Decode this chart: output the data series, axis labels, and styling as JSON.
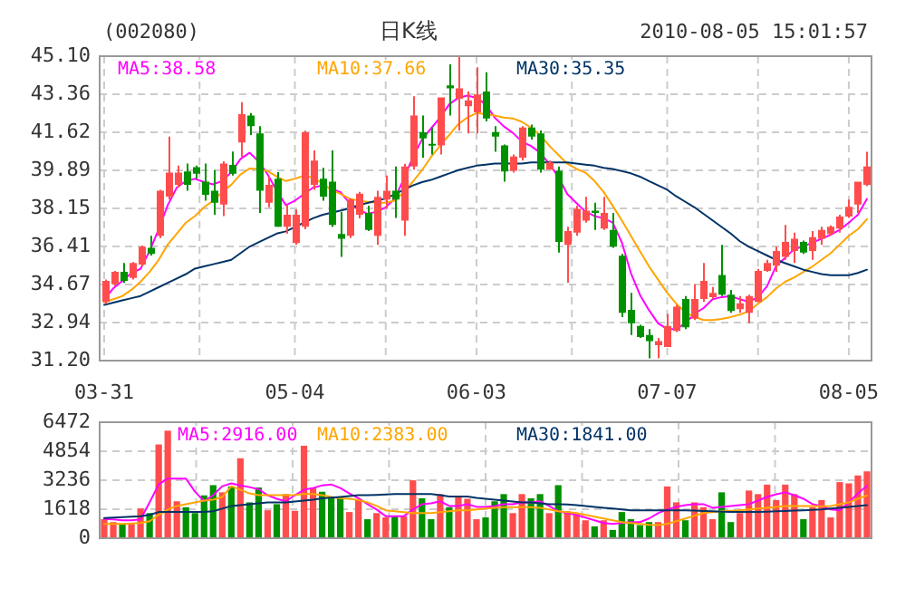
{
  "chart_data": [
    {
      "type": "candlestick",
      "title": "日K线",
      "annotations": [
        "(002080)",
        "2010-08-05 15:01:57"
      ],
      "categories": [
        "03-31",
        null,
        null,
        null,
        null,
        null,
        null,
        null,
        null,
        null,
        null,
        null,
        null,
        null,
        null,
        null,
        null,
        null,
        null,
        null,
        null,
        "05-04",
        null,
        null,
        null,
        null,
        null,
        null,
        null,
        null,
        null,
        null,
        null,
        null,
        null,
        null,
        null,
        null,
        null,
        null,
        null,
        "06-03",
        null,
        null,
        null,
        null,
        null,
        null,
        null,
        null,
        null,
        null,
        null,
        null,
        null,
        null,
        null,
        null,
        null,
        null,
        null,
        null,
        "07-07",
        null,
        null,
        null,
        null,
        null,
        null,
        null,
        null,
        null,
        null,
        null,
        null,
        null,
        null,
        null,
        null,
        null,
        null,
        null,
        "08-05",
        null,
        null
      ],
      "ohlc": [
        [
          33.88,
          34.9,
          33.8,
          34.84
        ],
        [
          34.7,
          35.3,
          34.6,
          35.25
        ],
        [
          35.25,
          35.66,
          34.75,
          34.84
        ],
        [
          34.98,
          35.7,
          34.9,
          35.66
        ],
        [
          35.58,
          36.45,
          35.5,
          36.4
        ],
        [
          36.35,
          36.9,
          36.0,
          36.07
        ],
        [
          36.9,
          39.0,
          36.8,
          38.96
        ],
        [
          38.69,
          41.43,
          38.55,
          39.78
        ],
        [
          39.23,
          40.1,
          39.1,
          39.78
        ],
        [
          39.84,
          40.2,
          38.96,
          39.23
        ],
        [
          40.03,
          40.1,
          39.5,
          39.73
        ],
        [
          39.37,
          40.2,
          38.5,
          38.77
        ],
        [
          38.96,
          39.9,
          37.86,
          38.41
        ],
        [
          38.33,
          40.3,
          37.8,
          40.2
        ],
        [
          40.14,
          40.75,
          39.65,
          39.73
        ],
        [
          41.16,
          43.0,
          40.5,
          42.45
        ],
        [
          42.39,
          42.5,
          41.5,
          41.9
        ],
        [
          41.57,
          41.9,
          37.94,
          38.96
        ],
        [
          38.41,
          39.6,
          38.2,
          39.23
        ],
        [
          39.51,
          39.8,
          37.3,
          37.31
        ],
        [
          37.31,
          38.3,
          37.0,
          37.86
        ],
        [
          36.57,
          38.1,
          36.5,
          37.86
        ],
        [
          37.31,
          41.7,
          37.2,
          41.62
        ],
        [
          39.23,
          40.8,
          39.0,
          40.33
        ],
        [
          39.51,
          40.0,
          38.5,
          38.69
        ],
        [
          39.37,
          40.8,
          37.3,
          37.39
        ],
        [
          36.98,
          37.98,
          35.94,
          36.76
        ],
        [
          36.9,
          38.6,
          36.8,
          38.55
        ],
        [
          37.86,
          38.9,
          37.7,
          38.82
        ],
        [
          37.94,
          38.27,
          37.12,
          37.17
        ],
        [
          36.9,
          38.96,
          36.49,
          38.68
        ],
        [
          38.55,
          39.65,
          38.13,
          38.96
        ],
        [
          38.96,
          40.06,
          37.72,
          38.55
        ],
        [
          37.59,
          40.19,
          36.9,
          40.06
        ],
        [
          40.06,
          43.27,
          39.92,
          42.39
        ],
        [
          41.62,
          42.39,
          40.47,
          41.35
        ],
        [
          41.1,
          41.84,
          40.61,
          41.02
        ],
        [
          41.02,
          43.22,
          40.61,
          43.22
        ],
        [
          43.77,
          44.73,
          42.39,
          43.63
        ],
        [
          43.16,
          45.1,
          41.71,
          43.63
        ],
        [
          42.81,
          43.49,
          41.57,
          43.08
        ],
        [
          42.53,
          44.59,
          41.57,
          43.35
        ],
        [
          43.49,
          44.37,
          42.12,
          42.26
        ],
        [
          41.62,
          41.9,
          40.74,
          41.43
        ],
        [
          41.02,
          41.07,
          39.37,
          39.84
        ],
        [
          39.87,
          40.61,
          39.78,
          40.52
        ],
        [
          40.47,
          41.9,
          40.33,
          41.84
        ],
        [
          41.84,
          41.98,
          41.29,
          41.43
        ],
        [
          41.57,
          41.71,
          39.78,
          39.92
        ],
        [
          39.92,
          40.33,
          39.92,
          40.25
        ],
        [
          39.87,
          40.06,
          36.13,
          36.62
        ],
        [
          36.49,
          37.31,
          34.76,
          37.12
        ],
        [
          37.04,
          38.27,
          36.9,
          38.13
        ],
        [
          37.59,
          38.68,
          37.5,
          38.05
        ],
        [
          38.05,
          38.41,
          37.17,
          37.94
        ],
        [
          37.23,
          38.68,
          37.17,
          37.94
        ],
        [
          37.17,
          37.94,
          36.35,
          36.4
        ],
        [
          35.99,
          36.07,
          33.19,
          33.38
        ],
        [
          33.52,
          34.29,
          32.37,
          32.91
        ],
        [
          32.78,
          32.83,
          32.23,
          32.28
        ],
        [
          32.37,
          32.64,
          31.3,
          32.09
        ],
        [
          31.9,
          32.23,
          31.3,
          32.09
        ],
        [
          31.82,
          33.33,
          31.82,
          32.78
        ],
        [
          32.56,
          33.74,
          32.5,
          33.66
        ],
        [
          34.01,
          34.15,
          32.64,
          32.72
        ],
        [
          33.11,
          34.7,
          33.05,
          34.01
        ],
        [
          34.01,
          35.66,
          33.88,
          34.84
        ],
        [
          34.1,
          34.56,
          34.01,
          34.29
        ],
        [
          35.11,
          36.49,
          34.15,
          34.21
        ],
        [
          34.21,
          34.43,
          33.38,
          33.46
        ],
        [
          33.55,
          34.15,
          33.38,
          33.82
        ],
        [
          33.38,
          34.21,
          32.91,
          34.15
        ],
        [
          33.88,
          35.39,
          33.88,
          35.3
        ],
        [
          35.3,
          35.8,
          35.25,
          35.66
        ],
        [
          35.53,
          36.4,
          35.25,
          36.21
        ],
        [
          35.94,
          37.4,
          35.8,
          36.62
        ],
        [
          36.21,
          37.04,
          35.66,
          36.76
        ],
        [
          36.62,
          36.68,
          36.07,
          36.13
        ],
        [
          36.21,
          37.12,
          35.8,
          36.84
        ],
        [
          36.76,
          37.31,
          36.49,
          37.17
        ],
        [
          36.98,
          37.37,
          36.9,
          37.31
        ],
        [
          37.23,
          37.86,
          37.04,
          37.78
        ],
        [
          37.78,
          38.55,
          37.72,
          38.22
        ],
        [
          38.33,
          39.37,
          37.94,
          39.37
        ],
        [
          39.23,
          40.74,
          39.16,
          40.06
        ]
      ],
      "colors": [
        "#ff4d4d",
        "#ff4d4d",
        "#009100",
        "#ff4d4d",
        "#ff4d4d",
        "#009100",
        "#ff4d4d",
        "#ff4d4d",
        "#ff4d4d",
        "#009100",
        "#009100",
        "#009100",
        "#009100",
        "#ff4d4d",
        "#009100",
        "#ff4d4d",
        "#009100",
        "#009100",
        "#ff4d4d",
        "#009100",
        "#ff4d4d",
        "#ff4d4d",
        "#ff4d4d",
        "#ff4d4d",
        "#009100",
        "#009100",
        "#009100",
        "#ff4d4d",
        "#ff4d4d",
        "#009100",
        "#ff4d4d",
        "#ff4d4d",
        "#009100",
        "#ff4d4d",
        "#ff4d4d",
        "#009100",
        "#009100",
        "#ff4d4d",
        "#009100",
        "#ff4d4d",
        "#ff4d4d",
        "#ff4d4d",
        "#009100",
        "#009100",
        "#009100",
        "#ff4d4d",
        "#ff4d4d",
        "#009100",
        "#009100",
        "#ff4d4d",
        "#009100",
        "#ff4d4d",
        "#ff4d4d",
        "#ff4d4d",
        "#009100",
        "#ff4d4d",
        "#009100",
        "#009100",
        "#009100",
        "#009100",
        "#009100",
        "#ff4d4d",
        "#ff4d4d",
        "#ff4d4d",
        "#009100",
        "#ff4d4d",
        "#ff4d4d",
        "#ff4d4d",
        "#009100",
        "#009100",
        "#ff4d4d",
        "#ff4d4d",
        "#ff4d4d",
        "#ff4d4d",
        "#ff4d4d",
        "#ff4d4d",
        "#ff4d4d",
        "#009100",
        "#ff4d4d",
        "#ff4d4d",
        "#ff4d4d",
        "#ff4d4d",
        "#ff4d4d",
        "#ff4d4d",
        "#ff4d4d"
      ],
      "series": [
        {
          "type": "line",
          "name": "MA5:38.58",
          "color": "#ff00ff",
          "values": [
            34.0,
            34.5,
            34.84,
            35.2,
            35.39,
            36.2,
            37.2,
            38.3,
            39.1,
            39.4,
            39.5,
            39.35,
            39.25,
            39.4,
            39.8,
            40.4,
            40.69,
            40.3,
            39.7,
            38.96,
            38.3,
            38.5,
            38.8,
            39.1,
            39.2,
            39.05,
            38.9,
            38.4,
            38.1,
            37.9,
            38.0,
            38.2,
            38.6,
            39.5,
            40.5,
            41.3,
            41.8,
            42.3,
            42.9,
            43.2,
            43.3,
            43.2,
            42.9,
            42.3,
            41.9,
            41.6,
            41.2,
            41.0,
            40.7,
            40.19,
            39.6,
            38.8,
            38.4,
            38.0,
            37.8,
            37.7,
            37.5,
            36.6,
            35.2,
            34.2,
            33.5,
            32.9,
            32.64,
            32.64,
            32.9,
            33.33,
            33.6,
            34.0,
            34.1,
            34.15,
            34.0,
            33.88,
            34.1,
            34.6,
            35.53,
            35.9,
            36.3,
            36.4,
            36.6,
            36.76,
            36.95,
            37.17,
            37.5,
            37.86,
            38.58
          ]
        },
        {
          "type": "line",
          "name": "MA10:37.66",
          "color": "#ffa500",
          "values": [
            33.88,
            34.0,
            34.15,
            34.43,
            34.8,
            35.25,
            35.8,
            36.5,
            37.0,
            37.5,
            37.8,
            38.2,
            38.5,
            38.9,
            39.23,
            39.7,
            39.97,
            39.95,
            39.85,
            39.6,
            39.4,
            39.5,
            39.65,
            39.55,
            39.3,
            39.0,
            38.82,
            38.6,
            38.5,
            38.45,
            38.41,
            38.41,
            38.5,
            38.9,
            39.37,
            39.9,
            40.5,
            41.02,
            41.5,
            42.0,
            42.3,
            42.5,
            42.45,
            42.39,
            42.3,
            42.26,
            42.1,
            41.84,
            41.5,
            41.02,
            40.6,
            40.19,
            39.95,
            39.78,
            39.4,
            38.9,
            38.27,
            37.6,
            36.9,
            36.2,
            35.5,
            34.9,
            34.3,
            33.8,
            33.4,
            33.2,
            33.05,
            33.05,
            33.1,
            33.19,
            33.3,
            33.46,
            33.8,
            34.1,
            34.5,
            34.8,
            35.0,
            35.25,
            35.5,
            35.8,
            36.1,
            36.5,
            36.9,
            37.2,
            37.66
          ]
        },
        {
          "type": "line",
          "name": "MA30:35.35",
          "color": "#003366",
          "values": [
            33.74,
            33.85,
            33.95,
            34.05,
            34.15,
            34.35,
            34.55,
            34.75,
            34.95,
            35.15,
            35.4,
            35.5,
            35.6,
            35.7,
            35.8,
            36.1,
            36.4,
            36.6,
            36.8,
            37.0,
            37.1,
            37.3,
            37.5,
            37.7,
            37.85,
            37.95,
            38.05,
            38.15,
            38.3,
            38.4,
            38.5,
            38.6,
            38.8,
            39.0,
            39.2,
            39.35,
            39.45,
            39.6,
            39.75,
            39.9,
            40.0,
            40.1,
            40.15,
            40.2,
            40.2,
            40.2,
            40.2,
            40.25,
            40.25,
            40.25,
            40.25,
            40.25,
            40.2,
            40.15,
            40.1,
            40.0,
            39.95,
            39.85,
            39.75,
            39.6,
            39.4,
            39.2,
            39.0,
            38.7,
            38.45,
            38.2,
            37.9,
            37.6,
            37.3,
            37.0,
            36.65,
            36.4,
            36.2,
            36.0,
            35.8,
            35.65,
            35.5,
            35.35,
            35.25,
            35.15,
            35.1,
            35.1,
            35.1,
            35.2,
            35.35
          ]
        }
      ],
      "ylim": [
        31.2,
        45.1
      ],
      "yticks": [
        {
          "value": 31.2,
          "label": "31.20"
        },
        {
          "value": 32.94,
          "label": "32.94"
        },
        {
          "value": 34.67,
          "label": "34.67"
        },
        {
          "value": 36.41,
          "label": "36.41"
        },
        {
          "value": 38.15,
          "label": "38.15"
        },
        {
          "value": 39.89,
          "label": "39.89"
        },
        {
          "value": 41.62,
          "label": "41.62"
        },
        {
          "value": 43.36,
          "label": "43.36"
        },
        {
          "value": 45.1,
          "label": "45.10"
        }
      ],
      "grid": true,
      "legend": "top"
    },
    {
      "type": "bar",
      "categories": [
        null,
        null,
        null,
        null,
        null,
        null,
        null,
        null,
        null,
        null,
        null,
        null,
        null,
        null,
        null,
        null,
        null,
        null,
        null,
        null,
        null,
        null,
        null,
        null,
        null,
        null,
        null,
        null,
        null,
        null,
        null,
        null,
        null,
        null,
        null,
        null,
        null,
        null,
        null,
        null,
        null,
        null,
        null,
        null,
        null,
        null,
        null,
        null,
        null,
        null,
        null,
        null,
        null,
        null,
        null,
        null,
        null,
        null,
        null,
        null,
        null,
        null,
        null,
        null,
        null,
        null,
        null,
        null,
        null,
        null,
        null,
        null,
        null,
        null,
        null,
        null,
        null,
        null,
        null,
        null,
        null,
        null,
        null,
        null,
        null
      ],
      "series": [
        {
          "type": "bar",
          "values": [
            1060,
            900,
            800,
            800,
            1660,
            1400,
            5230,
            6000,
            2060,
            1730,
            1400,
            2390,
            2960,
            2560,
            2890,
            4460,
            2000,
            2830,
            1560,
            1900,
            2460,
            1530,
            5160,
            2830,
            2590,
            2330,
            2330,
            1460,
            2130,
            1060,
            1400,
            1160,
            1200,
            1230,
            3230,
            2230,
            1060,
            2460,
            1730,
            2330,
            2200,
            1060,
            1160,
            2060,
            2460,
            1400,
            2460,
            2230,
            2460,
            1400,
            2960,
            1500,
            1400,
            1000,
            660,
            1000,
            460,
            1460,
            1060,
            730,
            900,
            900,
            2890,
            2000,
            1000,
            2000,
            1730,
            1060,
            2560,
            900,
            1400,
            2660,
            2460,
            2990,
            2130,
            2990,
            2460,
            1060,
            1730,
            2130,
            1160,
            3130,
            3060,
            3500,
            3730
          ],
          "colors": [
            "#ff4d4d",
            "#ff4d4d",
            "#009100",
            "#ff4d4d",
            "#ff4d4d",
            "#009100",
            "#ff4d4d",
            "#ff4d4d",
            "#ff4d4d",
            "#009100",
            "#009100",
            "#009100",
            "#009100",
            "#ff4d4d",
            "#009100",
            "#ff4d4d",
            "#009100",
            "#009100",
            "#ff4d4d",
            "#009100",
            "#ff4d4d",
            "#ff4d4d",
            "#ff4d4d",
            "#ff4d4d",
            "#009100",
            "#009100",
            "#009100",
            "#ff4d4d",
            "#ff4d4d",
            "#009100",
            "#ff4d4d",
            "#ff4d4d",
            "#009100",
            "#ff4d4d",
            "#ff4d4d",
            "#009100",
            "#009100",
            "#ff4d4d",
            "#009100",
            "#ff4d4d",
            "#ff4d4d",
            "#ff4d4d",
            "#009100",
            "#009100",
            "#009100",
            "#ff4d4d",
            "#ff4d4d",
            "#009100",
            "#009100",
            "#ff4d4d",
            "#009100",
            "#ff4d4d",
            "#ff4d4d",
            "#ff4d4d",
            "#009100",
            "#ff4d4d",
            "#009100",
            "#009100",
            "#009100",
            "#009100",
            "#009100",
            "#ff4d4d",
            "#ff4d4d",
            "#ff4d4d",
            "#009100",
            "#ff4d4d",
            "#ff4d4d",
            "#ff4d4d",
            "#009100",
            "#009100",
            "#ff4d4d",
            "#ff4d4d",
            "#ff4d4d",
            "#ff4d4d",
            "#ff4d4d",
            "#ff4d4d",
            "#ff4d4d",
            "#009100",
            "#ff4d4d",
            "#ff4d4d",
            "#ff4d4d",
            "#ff4d4d",
            "#ff4d4d",
            "#ff4d4d",
            "#ff4d4d"
          ]
        },
        {
          "type": "line",
          "name": "MA5:2916.00",
          "color": "#ff00ff",
          "values": [
            1070,
            1050,
            1000,
            1000,
            1050,
            2000,
            3000,
            3330,
            3330,
            3330,
            2600,
            2060,
            2400,
            2900,
            3060,
            2950,
            2850,
            2730,
            2400,
            2200,
            2060,
            2400,
            2700,
            2800,
            2950,
            3000,
            2800,
            2500,
            2230,
            1900,
            1600,
            1230,
            1230,
            1230,
            1600,
            1900,
            1950,
            2060,
            1800,
            1800,
            1900,
            1750,
            1750,
            1800,
            1900,
            1900,
            2000,
            2000,
            2060,
            1800,
            1500,
            1400,
            1300,
            1150,
            1000,
            850,
            800,
            850,
            900,
            900,
            1100,
            1400,
            1600,
            1750,
            1850,
            1900,
            1900,
            1700,
            1750,
            1800,
            1850,
            1900,
            2100,
            2300,
            2450,
            2560,
            2400,
            2200,
            1900,
            1800,
            1600,
            1560,
            2000,
            2500,
            2916
          ]
        },
        {
          "type": "line",
          "name": "MA10:2383.00",
          "color": "#ffa500",
          "values": [
            800,
            800,
            800,
            820,
            850,
            950,
            1300,
            1600,
            1800,
            1900,
            2000,
            2100,
            2150,
            2300,
            2900,
            2700,
            2500,
            2400,
            2400,
            2400,
            2400,
            2420,
            2460,
            2460,
            2400,
            2300,
            2230,
            2200,
            2130,
            2000,
            1800,
            1560,
            1500,
            1450,
            1400,
            1400,
            1400,
            1450,
            1500,
            1550,
            1560,
            1600,
            1650,
            1700,
            1730,
            1730,
            1730,
            1730,
            1700,
            1600,
            1500,
            1450,
            1400,
            1300,
            1200,
            1100,
            1000,
            900,
            850,
            800,
            750,
            730,
            800,
            950,
            1100,
            1250,
            1400,
            1450,
            1500,
            1530,
            1560,
            1600,
            1650,
            1700,
            1750,
            1800,
            1800,
            1800,
            1800,
            1780,
            1800,
            1900,
            2000,
            2200,
            2383
          ]
        },
        {
          "type": "line",
          "name": "MA30:1841.00",
          "color": "#003366",
          "values": [
            1130,
            1150,
            1180,
            1200,
            1230,
            1300,
            1460,
            1460,
            1460,
            1460,
            1460,
            1460,
            1500,
            1650,
            1800,
            1850,
            1900,
            1950,
            2000,
            2000,
            2000,
            2050,
            2100,
            2150,
            2230,
            2260,
            2300,
            2350,
            2400,
            2400,
            2420,
            2440,
            2460,
            2460,
            2460,
            2460,
            2460,
            2400,
            2330,
            2330,
            2330,
            2250,
            2200,
            2150,
            2100,
            2050,
            2000,
            2000,
            1950,
            1900,
            1900,
            1880,
            1850,
            1800,
            1750,
            1700,
            1650,
            1600,
            1560,
            1560,
            1560,
            1560,
            1560,
            1560,
            1560,
            1540,
            1520,
            1500,
            1480,
            1460,
            1460,
            1460,
            1470,
            1480,
            1500,
            1520,
            1540,
            1560,
            1580,
            1600,
            1650,
            1700,
            1750,
            1800,
            1841
          ]
        }
      ],
      "ylim": [
        0,
        6472
      ],
      "yticks": [
        0,
        1618,
        3236,
        4854,
        6472
      ],
      "grid": true,
      "legend": "top",
      "tick_labels": "y"
    }
  ]
}
